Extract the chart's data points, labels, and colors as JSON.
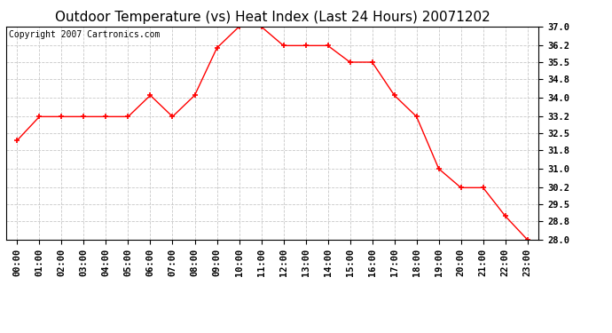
{
  "title": "Outdoor Temperature (vs) Heat Index (Last 24 Hours) 20071202",
  "copyright_text": "Copyright 2007 Cartronics.com",
  "x_labels": [
    "00:00",
    "01:00",
    "02:00",
    "03:00",
    "04:00",
    "05:00",
    "06:00",
    "07:00",
    "08:00",
    "09:00",
    "10:00",
    "11:00",
    "12:00",
    "13:00",
    "14:00",
    "15:00",
    "16:00",
    "17:00",
    "18:00",
    "19:00",
    "20:00",
    "21:00",
    "22:00",
    "23:00"
  ],
  "y_values": [
    32.2,
    33.2,
    33.2,
    33.2,
    33.2,
    33.2,
    34.1,
    33.2,
    34.1,
    36.1,
    37.0,
    37.0,
    36.2,
    36.2,
    36.2,
    35.5,
    35.5,
    34.1,
    33.2,
    31.0,
    30.2,
    30.2,
    29.0,
    28.0
  ],
  "line_color": "#ff0000",
  "marker": "+",
  "marker_size": 5,
  "marker_color": "#ff0000",
  "background_color": "#ffffff",
  "grid_color": "#c8c8c8",
  "y_min": 28.0,
  "y_max": 37.0,
  "y_ticks": [
    28.0,
    28.8,
    29.5,
    30.2,
    31.0,
    31.8,
    32.5,
    33.2,
    34.0,
    34.8,
    35.5,
    36.2,
    37.0
  ],
  "title_fontsize": 11,
  "copyright_fontsize": 7,
  "tick_fontsize": 7.5
}
